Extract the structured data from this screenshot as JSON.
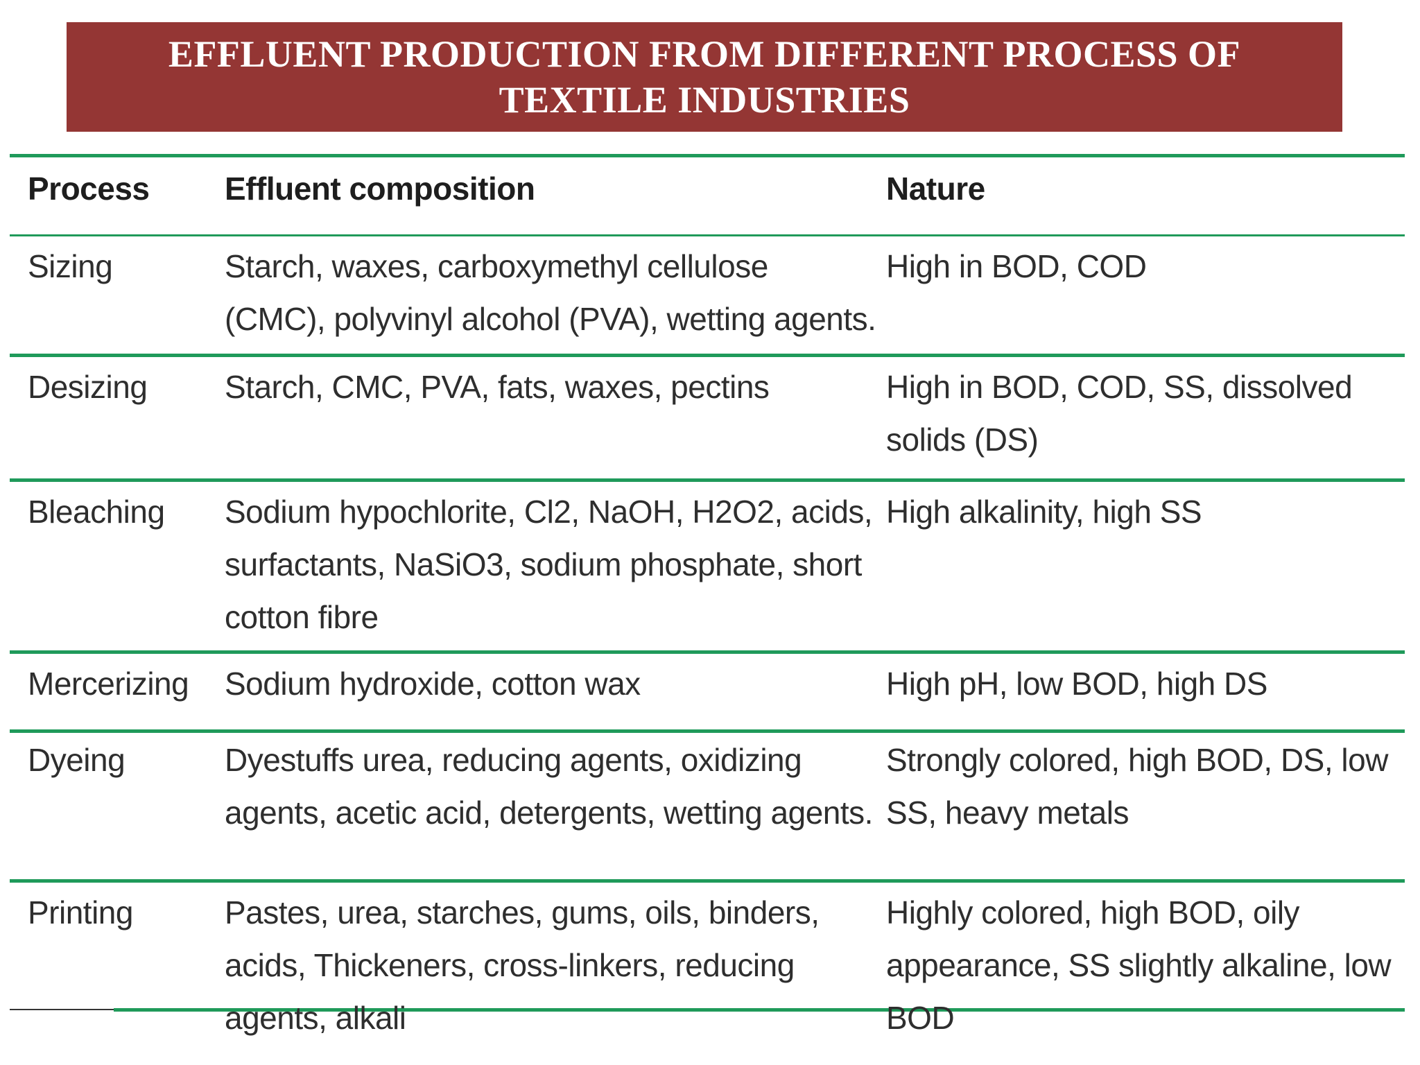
{
  "title": "EFFLUENT PRODUCTION FROM DIFFERENT PROCESS OF TEXTILE INDUSTRIES",
  "table": {
    "headers": [
      "Process",
      "Effluent composition",
      "Nature"
    ],
    "rows": [
      {
        "process": "Sizing",
        "composition": "Starch, waxes, carboxymethyl cellulose (CMC), polyvinyl alcohol (PVA), wetting agents.",
        "nature": "High in BOD, COD"
      },
      {
        "process": "Desizing",
        "composition": "Starch, CMC, PVA, fats, waxes, pectins",
        "nature": "High in BOD, COD, SS, dissolved solids (DS)"
      },
      {
        "process": "Bleaching",
        "composition": "Sodium hypochlorite, Cl2, NaOH, H2O2, acids, surfactants, NaSiO3, sodium phosphate, short cotton fibre",
        "nature": "High alkalinity, high SS"
      },
      {
        "process": "Mercerizing",
        "composition": "Sodium hydroxide, cotton wax",
        "nature": "High pH, low BOD, high DS"
      },
      {
        "process": "Dyeing",
        "composition": "Dyestuffs urea, reducing agents, oxidizing agents, acetic acid, detergents, wetting agents.",
        "nature": "Strongly colored, high BOD, DS, low SS, heavy metals"
      },
      {
        "process": "Printing",
        "composition": "Pastes, urea, starches, gums, oils, binders, acids, Thickeners, cross-linkers, reducing agents, alkali",
        "nature": "Highly colored, high BOD, oily appearance, SS slightly alkaline, low BOD"
      }
    ]
  },
  "colors": {
    "banner": "#943634",
    "rule": "#1f9a5a",
    "text": "#2e2e2e"
  }
}
